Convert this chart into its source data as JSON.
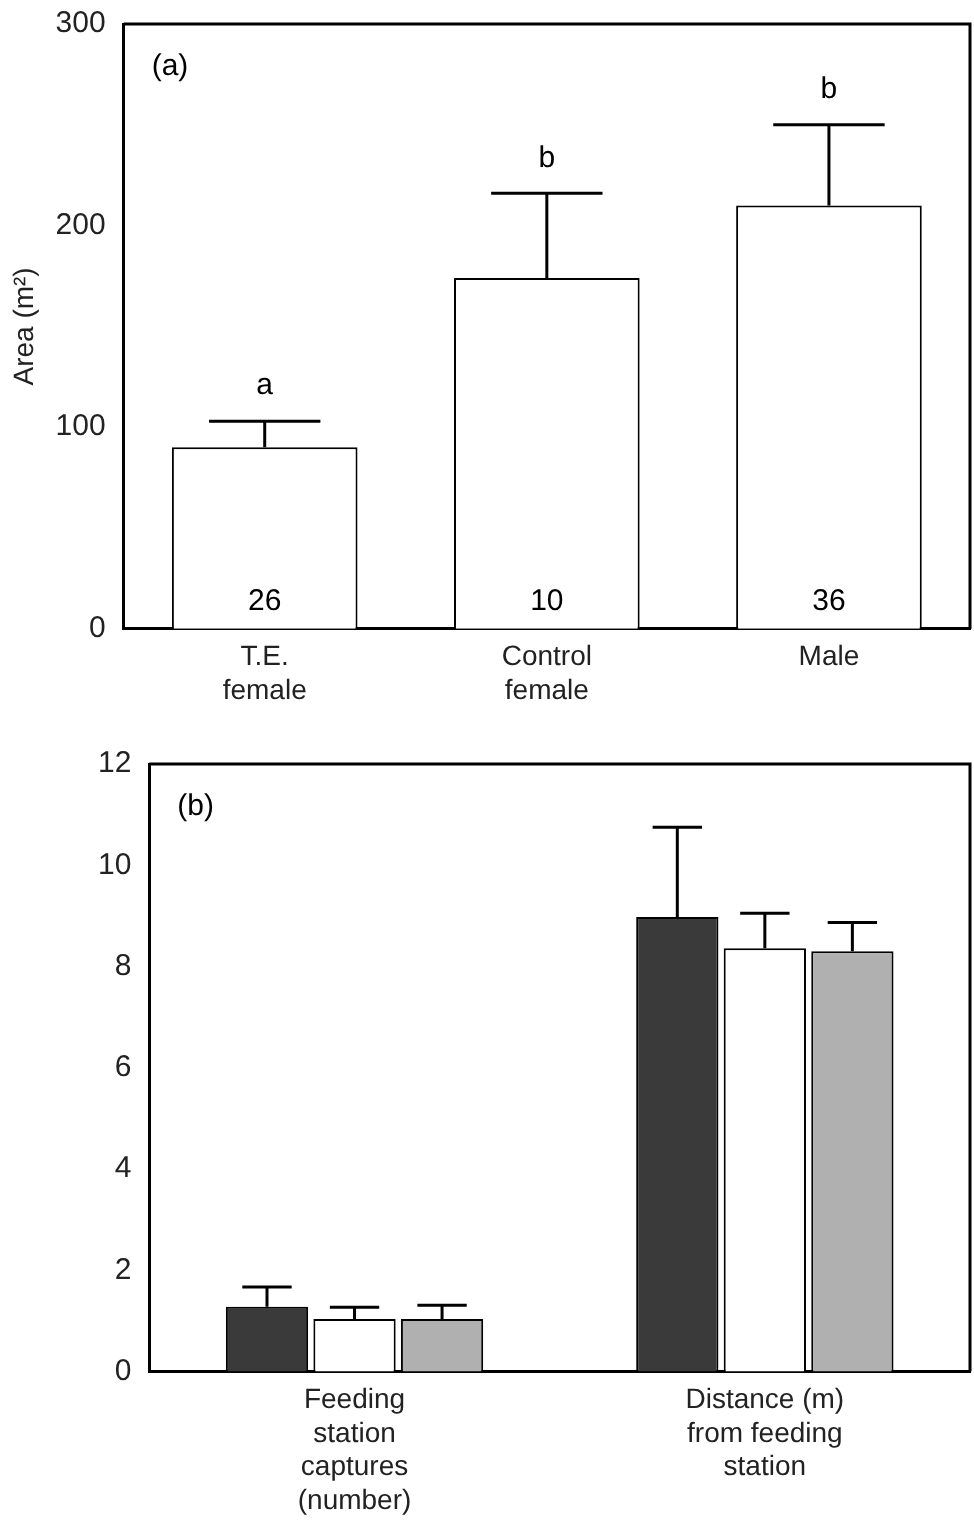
{
  "chart_data": [
    {
      "type": "bar",
      "categories": [
        "T.E. female",
        "Control female",
        "Male"
      ],
      "values": [
        90,
        174,
        210
      ],
      "errors": [
        [
          90,
          103
        ],
        [
          174,
          216
        ],
        [
          210,
          250
        ]
      ],
      "color": "#ffffff",
      "ylabel": "Area (m²)",
      "ylim": [
        0,
        300
      ],
      "yticks": [
        0,
        100,
        200,
        300
      ],
      "grid": false,
      "legend": false,
      "annotations": [
        "(a)",
        {
          "text": "a",
          "x": "T.E. female",
          "y": 103
        },
        {
          "text": "b",
          "x": "Control female",
          "y": 216
        },
        {
          "text": "b",
          "x": "Male",
          "y": 250
        },
        {
          "text": "26",
          "x": "T.E. female",
          "y": 0
        },
        {
          "text": "10",
          "x": "Control female",
          "y": 0
        },
        {
          "text": "36",
          "x": "Male",
          "y": 0
        }
      ]
    },
    {
      "type": "bar",
      "categories": [
        "Feeding station captures (number)",
        "Distance (m) from feeding station"
      ],
      "ylim": [
        0,
        12
      ],
      "yticks": [
        0,
        2,
        4,
        6,
        8,
        10,
        12
      ],
      "grid": false,
      "legend": false,
      "series": [
        {
          "color": "#3a3a3a",
          "values": [
            1.28,
            8.98
          ],
          "errors": [
            [
              1.28,
              1.67
            ],
            [
              8.98,
              10.75
            ]
          ]
        },
        {
          "color": "#ffffff",
          "values": [
            1.04,
            8.36
          ],
          "errors": [
            [
              1.04,
              1.27
            ],
            [
              8.36,
              9.05
            ]
          ]
        },
        {
          "color": "#b0b0b0",
          "values": [
            1.04,
            8.3
          ],
          "errors": [
            [
              1.04,
              1.31
            ],
            [
              8.3,
              8.87
            ]
          ]
        }
      ],
      "annotations": [
        "(b)"
      ]
    }
  ]
}
